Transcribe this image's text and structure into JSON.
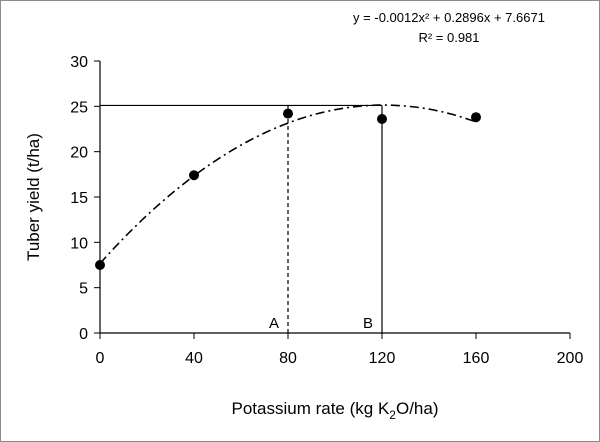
{
  "chart_data": {
    "type": "scatter",
    "points": [
      {
        "x": 0,
        "y": 7.5
      },
      {
        "x": 40,
        "y": 17.4
      },
      {
        "x": 80,
        "y": 24.2
      },
      {
        "x": 120,
        "y": 23.6
      },
      {
        "x": 160,
        "y": 23.8
      }
    ],
    "trendline": {
      "type": "polynomial",
      "a": -0.0012,
      "b": 0.2896,
      "c": 7.6671,
      "x_range": [
        0,
        160
      ],
      "style": "dash-dot"
    },
    "equation": "y = -0.0012x² + 0.2896x + 7.6671",
    "r2_label": "R² = 0.981",
    "xlabel_pre": "Potassium rate (kg K",
    "xlabel_sub": "2",
    "xlabel_post": "O/ha)",
    "ylabel": "Tuber yield (t/ha)",
    "xlim": [
      0,
      200
    ],
    "ylim": [
      0,
      30
    ],
    "x_ticks": [
      0,
      40,
      80,
      120,
      160,
      200
    ],
    "y_ticks": [
      0,
      5,
      10,
      15,
      20,
      25,
      30
    ],
    "max_yield_line": {
      "y": 25.1,
      "x_from": 0,
      "x_to": 120
    },
    "markers": [
      {
        "label": "A",
        "x": 80,
        "style": "dashed"
      },
      {
        "label": "B",
        "x": 120,
        "style": "solid"
      }
    ],
    "grid": false,
    "legend": "none"
  }
}
